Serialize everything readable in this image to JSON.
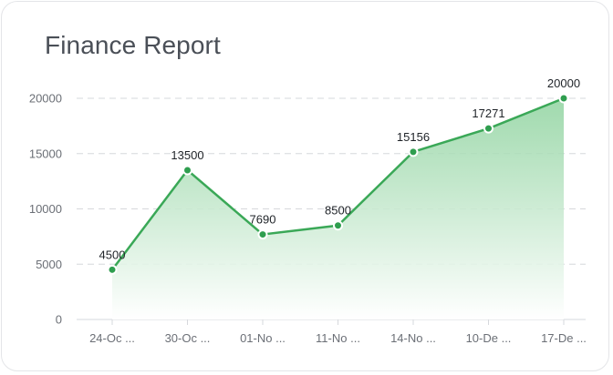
{
  "title": "Finance Report",
  "colors": {
    "line": "#3aa857",
    "area_top": "#8fd39f",
    "area_bottom": "#ffffff",
    "point_fill": "#2f9e4f",
    "point_stroke": "#ffffff",
    "grid": "#d6d8dc",
    "axis": "#d6d8dc"
  },
  "chart_data": {
    "type": "area",
    "categories": [
      "24-Oc ...",
      "30-Oc ...",
      "01-No ...",
      "11-No ...",
      "14-No ...",
      "10-De ...",
      "17-De ..."
    ],
    "values": [
      4500,
      13500,
      7690,
      8500,
      15156,
      17271,
      20000
    ],
    "data_labels": [
      "4500",
      "13500",
      "7690",
      "8500",
      "15156",
      "17271",
      "20000"
    ],
    "y_ticks": [
      0,
      5000,
      10000,
      15000,
      20000
    ],
    "ylim": [
      0,
      20000
    ],
    "grid": "horizontal dashed",
    "legend": "none"
  }
}
